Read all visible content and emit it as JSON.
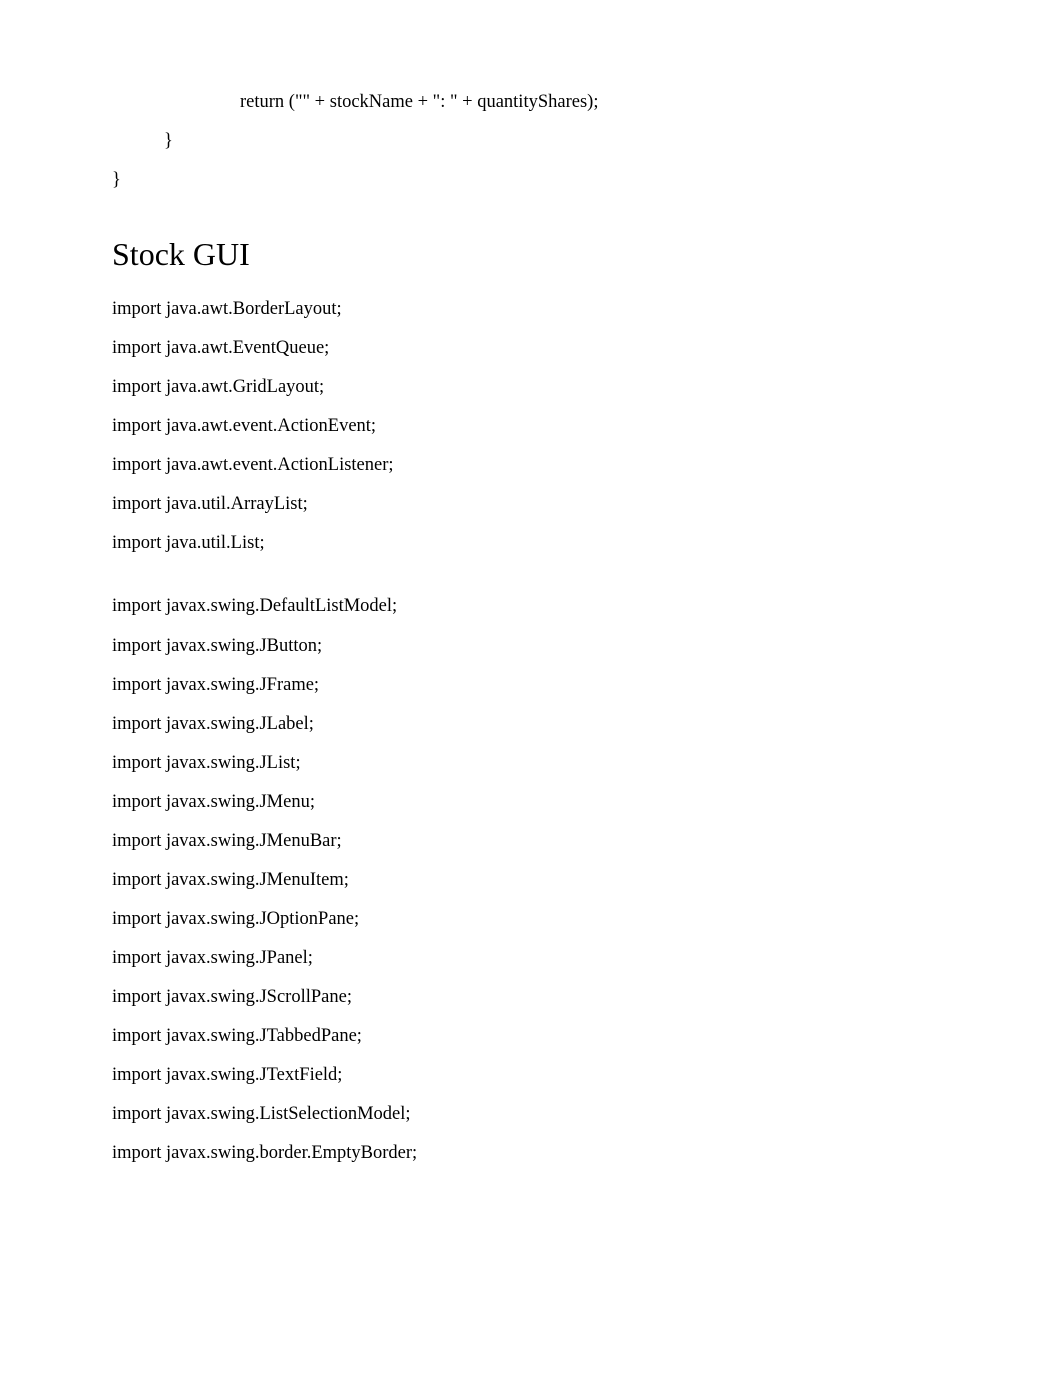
{
  "code_top": {
    "line1": "return (\"\" + stockName + \": \" + quantityShares);",
    "line2": "}",
    "line3": "}"
  },
  "heading": "Stock GUI",
  "imports_block1": [
    "import java.awt.BorderLayout;",
    "import java.awt.EventQueue;",
    "import java.awt.GridLayout;",
    "import java.awt.event.ActionEvent;",
    "import java.awt.event.ActionListener;",
    "import java.util.ArrayList;",
    "import java.util.List;"
  ],
  "imports_block2": [
    "import javax.swing.DefaultListModel;",
    "import javax.swing.JButton;",
    "import javax.swing.JFrame;",
    "import javax.swing.JLabel;",
    "import javax.swing.JList;",
    "import javax.swing.JMenu;",
    "import javax.swing.JMenuBar;",
    "import javax.swing.JMenuItem;",
    "import javax.swing.JOptionPane;",
    "import javax.swing.JPanel;",
    "import javax.swing.JScrollPane;",
    "import javax.swing.JTabbedPane;",
    "import javax.swing.JTextField;",
    "import javax.swing.ListSelectionModel;",
    "import javax.swing.border.EmptyBorder;"
  ]
}
